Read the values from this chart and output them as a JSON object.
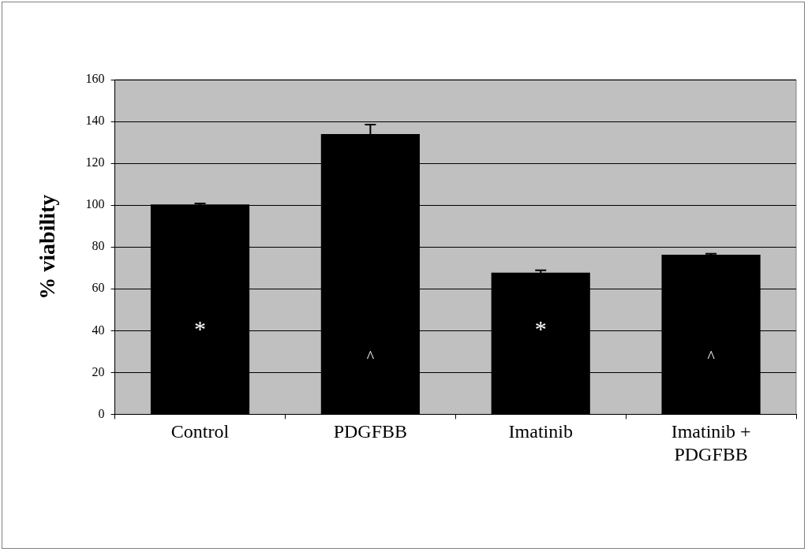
{
  "chart_data": {
    "type": "bar",
    "ylabel": "% viability",
    "categories": [
      "Control",
      "PDGFBB",
      "Imatinib",
      "Imatinib + PDGFBB"
    ],
    "values": [
      100.3,
      134,
      67.7,
      76.3
    ],
    "errors": [
      0.5,
      4.5,
      1.2,
      0.5
    ],
    "color": "#000000",
    "ylim": [
      0,
      160
    ],
    "yticks": [
      0,
      20,
      40,
      60,
      80,
      100,
      120,
      140,
      160
    ],
    "grid": "y",
    "annotations": [
      "*",
      "^",
      "*",
      "^"
    ]
  }
}
